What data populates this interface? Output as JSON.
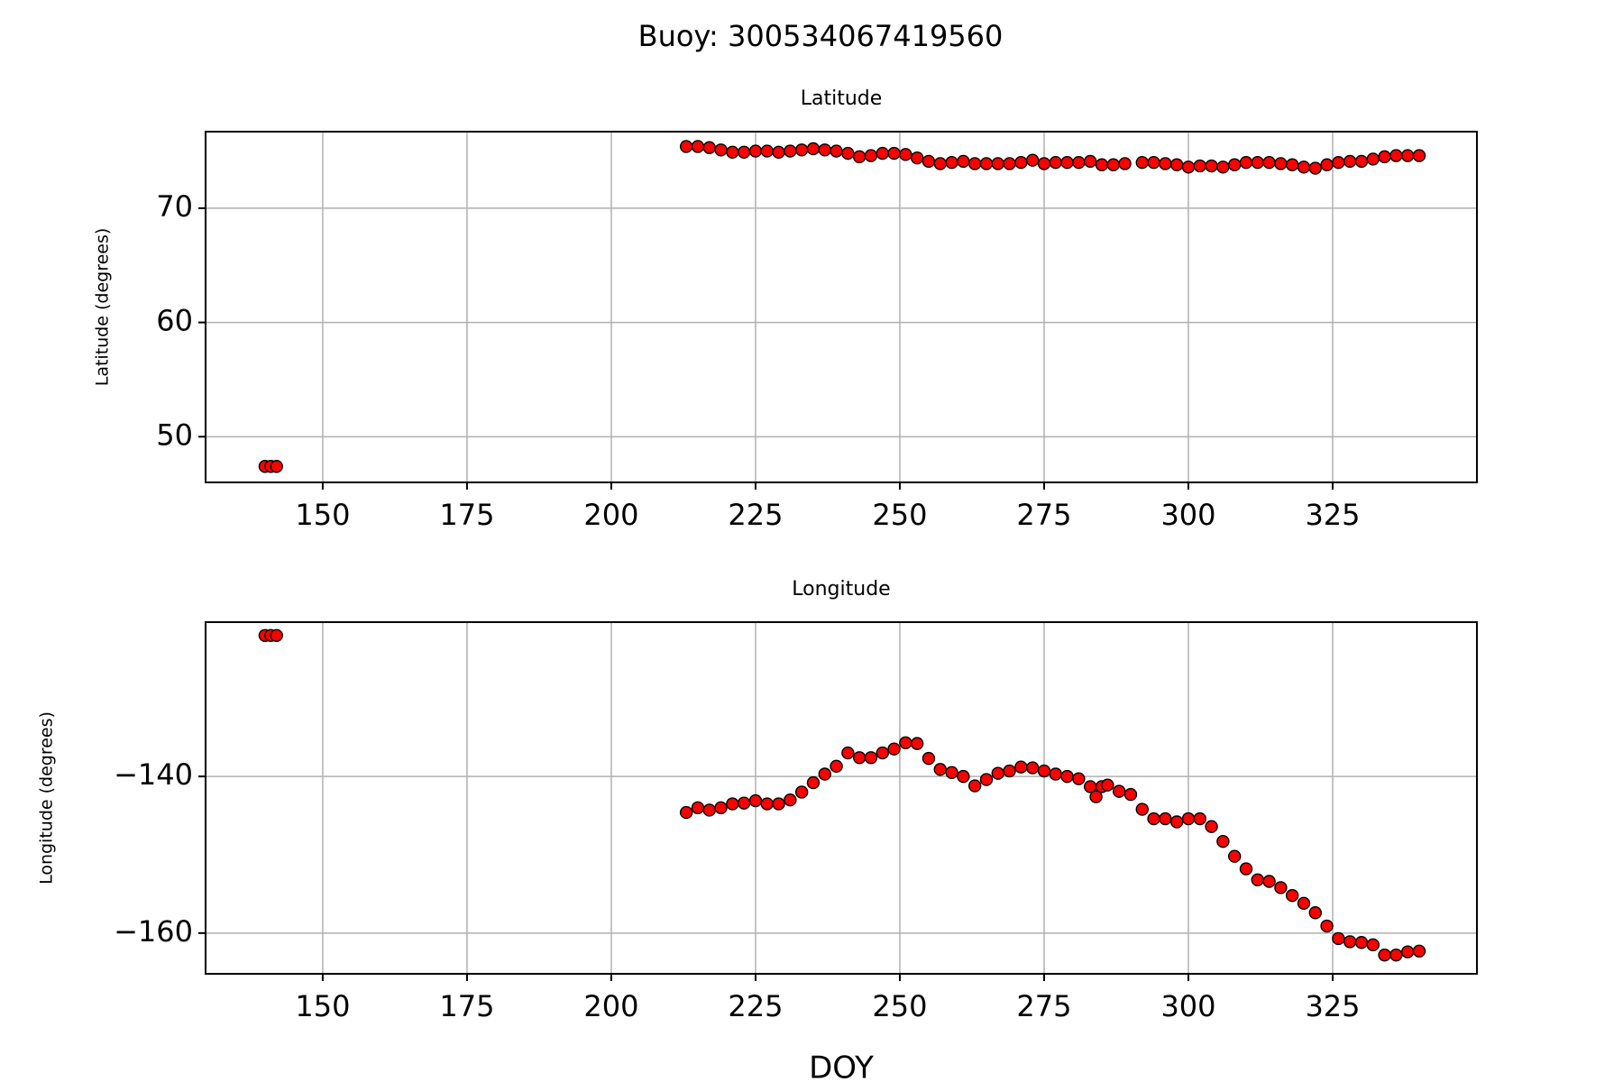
{
  "title": "Buoy: 300534067419560",
  "chart_data": [
    {
      "type": "scatter",
      "title": "Latitude",
      "ylabel": "Latitude (degrees)",
      "color": "#ff0000",
      "edgecolor": "#000000",
      "grid": true,
      "xlim": [
        129.7,
        350.0
      ],
      "xticks": [
        150,
        175,
        200,
        225,
        250,
        275,
        300,
        325
      ],
      "ylim": [
        46.0,
        76.7
      ],
      "yticks": [
        50,
        60,
        70
      ],
      "x": [
        140,
        141,
        142,
        213,
        215,
        217,
        219,
        221,
        223,
        225,
        227,
        229,
        231,
        233,
        235,
        237,
        239,
        241,
        243,
        245,
        247,
        249,
        251,
        253,
        255,
        257,
        259,
        261,
        263,
        265,
        267,
        269,
        271,
        273,
        275,
        277,
        279,
        281,
        283,
        285,
        287,
        289,
        292,
        294,
        296,
        298,
        300,
        302,
        304,
        306,
        308,
        310,
        312,
        314,
        316,
        318,
        320,
        322,
        324,
        326,
        328,
        330,
        332,
        334,
        336,
        338,
        340
      ],
      "values": [
        47.4,
        47.4,
        47.4,
        75.4,
        75.4,
        75.3,
        75.1,
        74.9,
        74.9,
        75.0,
        75.0,
        74.9,
        75.0,
        75.1,
        75.2,
        75.1,
        75.0,
        74.8,
        74.5,
        74.6,
        74.8,
        74.8,
        74.7,
        74.4,
        74.1,
        73.9,
        74.0,
        74.1,
        73.9,
        73.9,
        73.9,
        73.9,
        74.0,
        74.2,
        73.9,
        74.0,
        74.0,
        74.0,
        74.1,
        73.8,
        73.8,
        73.9,
        74.0,
        74.0,
        73.9,
        73.8,
        73.6,
        73.7,
        73.7,
        73.6,
        73.8,
        74.0,
        74.0,
        74.0,
        73.9,
        73.8,
        73.6,
        73.5,
        73.8,
        74.0,
        74.1,
        74.1,
        74.3,
        74.5,
        74.6,
        74.6,
        74.6
      ]
    },
    {
      "type": "scatter",
      "title": "Longitude",
      "ylabel": "Longitude (degrees)",
      "xlabel": "DOY",
      "color": "#ff0000",
      "edgecolor": "#000000",
      "grid": true,
      "xlim": [
        129.7,
        350.0
      ],
      "xticks": [
        150,
        175,
        200,
        225,
        250,
        275,
        300,
        325
      ],
      "ylim": [
        -165.2,
        -120.3
      ],
      "yticks": [
        {
          "value": -140,
          "label": "−140"
        },
        {
          "value": -160,
          "label": "−160"
        }
      ],
      "x": [
        140,
        141,
        142,
        213,
        215,
        217,
        219,
        221,
        223,
        225,
        227,
        229,
        231,
        233,
        235,
        237,
        239,
        241,
        243,
        245,
        247,
        249,
        251,
        253,
        255,
        257,
        259,
        261,
        263,
        265,
        267,
        269,
        271,
        273,
        275,
        277,
        279,
        281,
        283,
        284,
        285,
        286,
        288,
        290,
        292,
        294,
        296,
        298,
        300,
        302,
        304,
        306,
        308,
        310,
        312,
        314,
        316,
        318,
        320,
        322,
        324,
        326,
        328,
        330,
        332,
        334,
        336,
        338,
        340
      ],
      "values": [
        -122.0,
        -122.0,
        -122.0,
        -144.6,
        -144.0,
        -144.3,
        -144.0,
        -143.5,
        -143.4,
        -143.1,
        -143.5,
        -143.5,
        -143.0,
        -142.0,
        -140.8,
        -139.7,
        -138.7,
        -137.0,
        -137.6,
        -137.6,
        -137.0,
        -136.5,
        -135.7,
        -135.8,
        -137.7,
        -139.1,
        -139.5,
        -140.0,
        -141.2,
        -140.4,
        -139.6,
        -139.3,
        -138.8,
        -138.9,
        -139.3,
        -139.7,
        -140.0,
        -140.3,
        -141.3,
        -142.6,
        -141.3,
        -141.1,
        -141.9,
        -142.3,
        -144.2,
        -145.4,
        -145.4,
        -145.8,
        -145.4,
        -145.4,
        -146.4,
        -148.3,
        -150.2,
        -151.8,
        -153.2,
        -153.4,
        -154.2,
        -155.2,
        -156.2,
        -157.4,
        -159.1,
        -160.7,
        -161.1,
        -161.2,
        -161.5,
        -162.8,
        -162.8,
        -162.4,
        -162.3
      ]
    }
  ]
}
